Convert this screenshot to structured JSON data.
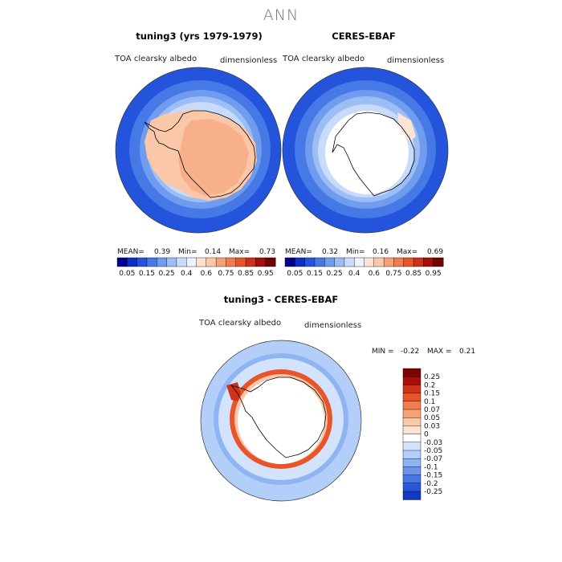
{
  "suptitle": "ANN",
  "colors": {
    "pos": [
      "#ffffff",
      "#fde3d4",
      "#fbc7a9",
      "#f8a177",
      "#f27b4f",
      "#e8552b",
      "#d0321a",
      "#a90f0a",
      "#7a0403"
    ],
    "neg": [
      "#ffffff",
      "#d3e3fb",
      "#b3cef8",
      "#8fb4f3",
      "#6b95ec",
      "#4776e4",
      "#2a57da",
      "#1437c4",
      "#041c97"
    ],
    "abs": [
      "#00008a",
      "#0f2fc2",
      "#2454dc",
      "#4679e6",
      "#6f9cef",
      "#9dbdf5",
      "#c8dbfa",
      "#eef3fd",
      "#fde3d4",
      "#fbc7a9",
      "#f8a177",
      "#f27b4f",
      "#e8552b",
      "#cc3219",
      "#a1100a",
      "#700402"
    ]
  },
  "chart_data": [
    {
      "type": "heatmap",
      "projection": "south-polar-stereographic",
      "title": "tuning3 (yrs 1979-1979)",
      "left_label": "TOA clearsky albedo",
      "right_label": "dimensionless",
      "stats": {
        "mean_label": "MEAN=",
        "mean": "0.39",
        "min_label": "Min=",
        "min": "0.14",
        "max_label": "Max=",
        "max": "0.73"
      },
      "colorbar_ticks": [
        "0.05",
        "0.15",
        "0.25",
        "0.4",
        "0.6",
        "0.75",
        "0.85",
        "0.95"
      ],
      "field": {
        "antarctic_interior": 0.6,
        "sea_ice_edge": 0.4,
        "outer_ocean": 0.15
      }
    },
    {
      "type": "heatmap",
      "projection": "south-polar-stereographic",
      "title": "CERES-EBAF",
      "left_label": "TOA clearsky albedo",
      "right_label": "dimensionless",
      "stats": {
        "mean_label": "MEAN=",
        "mean": "0.32",
        "min_label": "Min=",
        "min": "0.16",
        "max_label": "Max=",
        "max": "0.69"
      },
      "colorbar_ticks": [
        "0.05",
        "0.15",
        "0.25",
        "0.4",
        "0.6",
        "0.75",
        "0.85",
        "0.95"
      ],
      "field": {
        "antarctic_interior": "missing",
        "sea_ice_edge": 0.4,
        "outer_ocean": 0.15
      }
    },
    {
      "type": "heatmap",
      "projection": "south-polar-stereographic",
      "title": "tuning3 - CERES-EBAF",
      "left_label": "TOA clearsky albedo",
      "right_label": "dimensionless",
      "minmax": {
        "min_label": "MIN =",
        "min": "-0.22",
        "max_label": "MAX =",
        "max": "0.21"
      },
      "colorbar_ticks": [
        "0.25",
        "0.2",
        "0.15",
        "0.1",
        "0.07",
        "0.05",
        "0.03",
        "0",
        "-0.03",
        "-0.05",
        "-0.07",
        "-0.1",
        "-0.15",
        "-0.2",
        "-0.25"
      ],
      "field": {
        "coastal_ring": 0.15,
        "outer_ocean": -0.07
      }
    }
  ]
}
